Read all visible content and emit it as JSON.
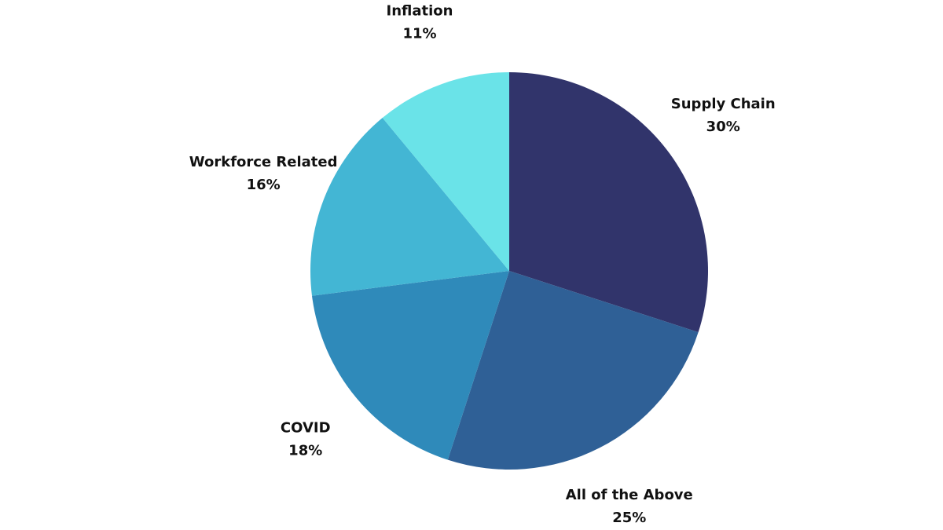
{
  "chart_data": {
    "type": "pie",
    "categories": [
      "Supply Chain",
      "All of the Above",
      "COVID",
      "Workforce Related",
      "Inflation"
    ],
    "values": [
      30,
      25,
      18,
      16,
      11
    ],
    "value_labels": [
      "30%",
      "25%",
      "18%",
      "16%",
      "11%"
    ],
    "colors": [
      "#31346b",
      "#2f6096",
      "#2f8aba",
      "#43b6d4",
      "#6ae3e8"
    ]
  }
}
